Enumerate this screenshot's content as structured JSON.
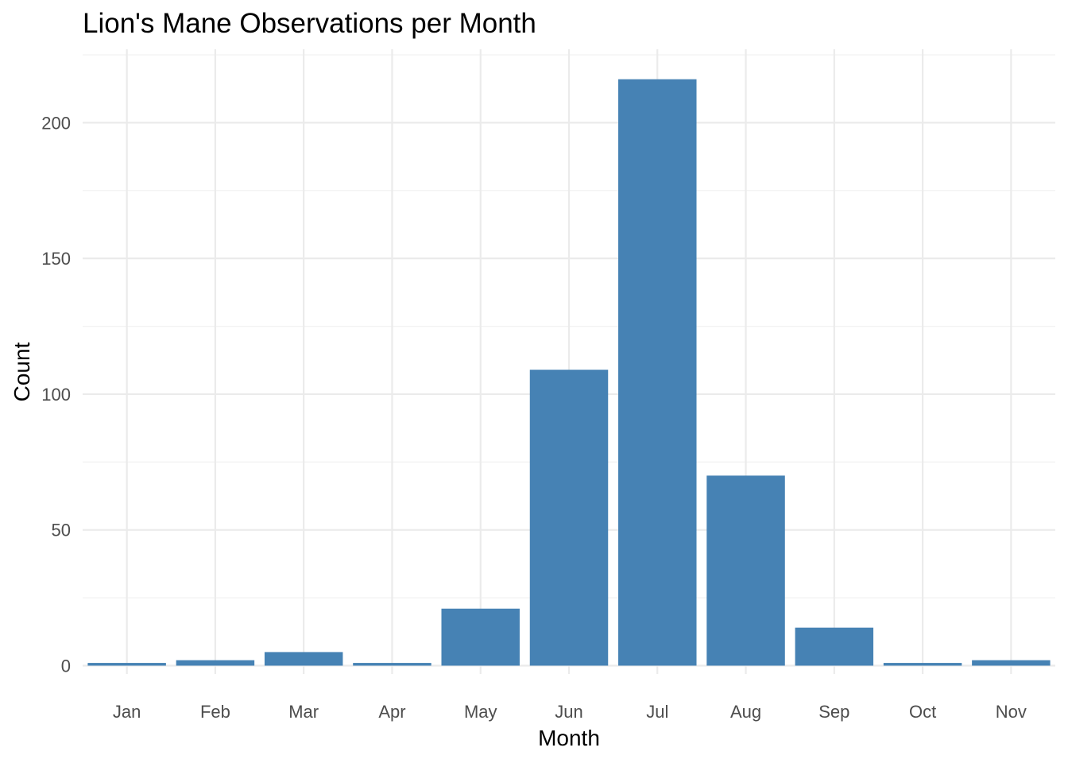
{
  "chart_data": {
    "type": "bar",
    "title": "Lion's Mane Observations per Month",
    "xlabel": "Month",
    "ylabel": "Count",
    "categories": [
      "Jan",
      "Feb",
      "Mar",
      "Apr",
      "May",
      "Jun",
      "Jul",
      "Aug",
      "Sep",
      "Oct",
      "Nov"
    ],
    "values": [
      1,
      2,
      5,
      1,
      21,
      109,
      216,
      70,
      14,
      1,
      2
    ],
    "ylim": [
      0,
      226
    ],
    "yticks": [
      0,
      50,
      100,
      150,
      200
    ],
    "ytick_labels": [
      "0",
      "50",
      "100",
      "150",
      "200"
    ],
    "grid": true,
    "legend": "none",
    "bar_color": "#4682B4"
  }
}
